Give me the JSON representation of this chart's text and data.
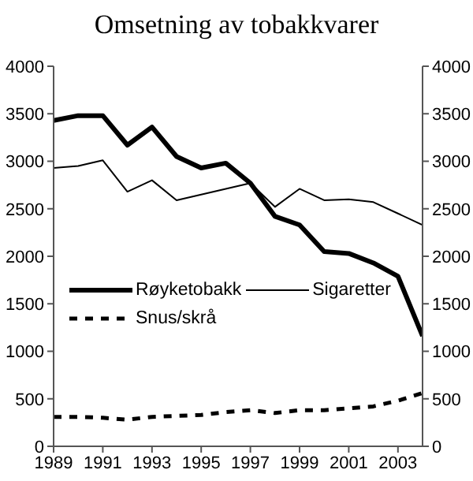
{
  "chart_data": {
    "type": "line",
    "title": "Omsetning av tobakkvarer",
    "x": [
      1989,
      1990,
      1991,
      1992,
      1993,
      1994,
      1995,
      1996,
      1997,
      1998,
      1999,
      2000,
      2001,
      2002,
      2003,
      2004
    ],
    "series": [
      {
        "name": "Røyketobakk",
        "color": "#000000",
        "line_style": "solid",
        "values": [
          3430,
          3480,
          3480,
          3170,
          3360,
          3050,
          2930,
          2980,
          2770,
          2420,
          2330,
          2050,
          2030,
          1930,
          1790,
          1160
        ]
      },
      {
        "name": "Sigaretter",
        "color": "#000000",
        "line_style": "solid",
        "values": [
          2930,
          2950,
          3010,
          2680,
          2800,
          2590,
          2650,
          2710,
          2770,
          2520,
          2710,
          2590,
          2600,
          2570,
          2450,
          2330
        ]
      },
      {
        "name": "Snus/skrå",
        "color": "#000000",
        "line_style": "dashed",
        "values": [
          310,
          310,
          300,
          280,
          310,
          320,
          330,
          360,
          380,
          350,
          380,
          380,
          400,
          420,
          480,
          560
        ]
      }
    ],
    "xlim": [
      1989,
      2004
    ],
    "xticks": [
      1989,
      1991,
      1993,
      1995,
      1997,
      1999,
      2001,
      2003
    ],
    "ylim": [
      0,
      4000
    ],
    "yticks": [
      0,
      500,
      1000,
      1500,
      2000,
      2500,
      3000,
      3500,
      4000
    ],
    "y2lim": [
      0,
      4000
    ],
    "y2ticks": [
      0,
      500,
      1000,
      1500,
      2000,
      2500,
      3000,
      3500,
      4000
    ],
    "grid": false,
    "legend": "left",
    "marker": "none"
  }
}
